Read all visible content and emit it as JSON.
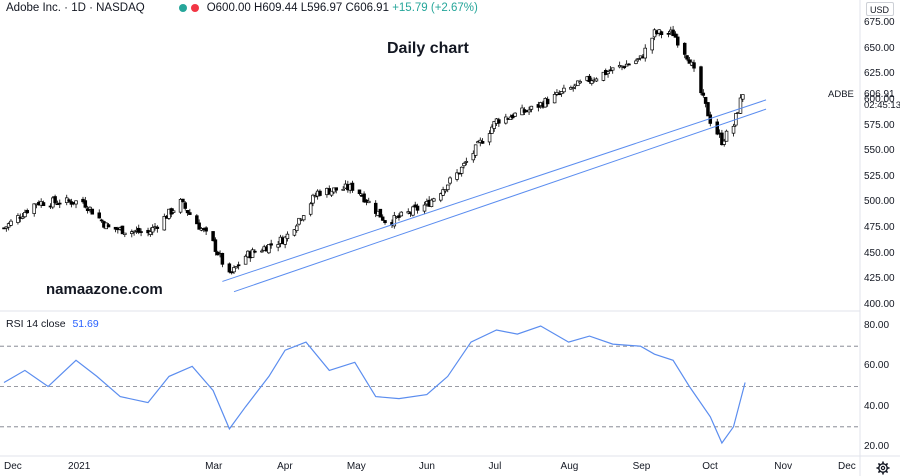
{
  "header": {
    "symbol": "Adobe Inc. · 1D · NASDAQ",
    "open": "O600.00",
    "high": "H609.44",
    "low": "L596.97",
    "close": "C606.91",
    "change": "+15.79 (+2.67%)",
    "dot_colors": [
      "#26a69a",
      "#f23645"
    ]
  },
  "currency": "USD",
  "symbol_tag": "ADBE",
  "last_price": "606.91",
  "countdown": "02:45:13",
  "annotations": {
    "title": "Daily chart",
    "watermark": "namaazone.com"
  },
  "rsi": {
    "label": "RSI 14 close",
    "value": "51.69"
  },
  "colors": {
    "up": "#ffffff",
    "down": "#000000",
    "wick": "#000000",
    "rsi_line": "#5b8def",
    "trendline": "#5b8def",
    "accent": "#2962ff"
  },
  "chart_data": [
    {
      "type": "candlestick",
      "title": "",
      "ylim": [
        400,
        675
      ],
      "yticks": [
        "675.00",
        "650.00",
        "625.00",
        "600.00",
        "575.00",
        "550.00",
        "525.00",
        "500.00",
        "475.00",
        "450.00",
        "425.00",
        "400.00"
      ],
      "xticks": [
        "Dec",
        "2021",
        "Mar",
        "Apr",
        "May",
        "Jun",
        "Jul",
        "Aug",
        "Sep",
        "Oct",
        "Nov",
        "Dec"
      ],
      "x": [
        "2020-12-01",
        "2020-12-15",
        "2021-01-04",
        "2021-01-15",
        "2021-02-01",
        "2021-02-15",
        "2021-03-01",
        "2021-03-08",
        "2021-03-15",
        "2021-04-01",
        "2021-04-15",
        "2021-05-01",
        "2021-05-15",
        "2021-06-01",
        "2021-06-15",
        "2021-07-01",
        "2021-07-15",
        "2021-08-01",
        "2021-08-15",
        "2021-09-01",
        "2021-09-07",
        "2021-09-15",
        "2021-09-22",
        "2021-10-01",
        "2021-10-06",
        "2021-10-11",
        "2021-10-15"
      ],
      "close": [
        475,
        500,
        501,
        475,
        470,
        500,
        460,
        428,
        448,
        465,
        510,
        515,
        480,
        498,
        530,
        580,
        590,
        610,
        625,
        640,
        665,
        665,
        640,
        580,
        560,
        575,
        607
      ],
      "trendlines": [
        {
          "from": [
            "2021-03-05",
            423
          ],
          "to": [
            "2021-10-25",
            600
          ]
        },
        {
          "from": [
            "2021-03-10",
            413
          ],
          "to": [
            "2021-10-25",
            591
          ]
        }
      ]
    },
    {
      "type": "line",
      "title": "",
      "ylim": [
        15,
        82
      ],
      "yticks": [
        "80.00",
        "60.00",
        "40.00",
        "20.00"
      ],
      "guides": [
        70,
        50,
        30
      ],
      "series": [
        {
          "name": "RSI 14 close",
          "x": [
            "2020-12-01",
            "2020-12-10",
            "2020-12-20",
            "2021-01-01",
            "2021-01-10",
            "2021-01-20",
            "2021-02-01",
            "2021-02-10",
            "2021-02-20",
            "2021-03-01",
            "2021-03-08",
            "2021-03-15",
            "2021-03-25",
            "2021-04-01",
            "2021-04-10",
            "2021-04-20",
            "2021-05-01",
            "2021-05-10",
            "2021-05-20",
            "2021-06-01",
            "2021-06-10",
            "2021-06-20",
            "2021-07-01",
            "2021-07-10",
            "2021-07-20",
            "2021-08-01",
            "2021-08-10",
            "2021-08-20",
            "2021-09-01",
            "2021-09-07",
            "2021-09-15",
            "2021-09-22",
            "2021-10-01",
            "2021-10-06",
            "2021-10-11",
            "2021-10-16"
          ],
          "values": [
            52,
            58,
            50,
            63,
            55,
            45,
            42,
            55,
            60,
            48,
            29,
            40,
            55,
            68,
            72,
            58,
            62,
            45,
            44,
            46,
            55,
            72,
            78,
            76,
            80,
            72,
            75,
            71,
            70,
            66,
            63,
            50,
            35,
            22,
            30,
            52
          ]
        }
      ]
    }
  ]
}
